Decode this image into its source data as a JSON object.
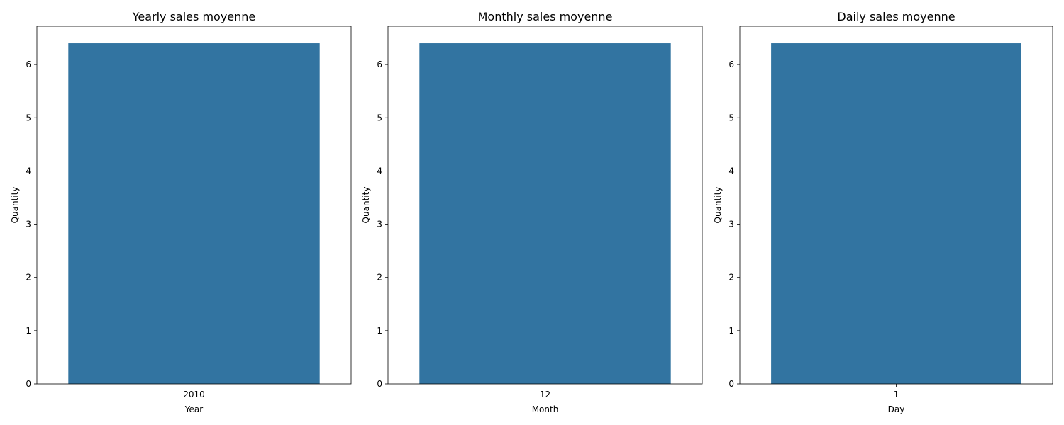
{
  "chart_data": [
    {
      "type": "bar",
      "title": "Yearly sales moyenne",
      "xlabel": "Year",
      "ylabel": "Quantity",
      "categories": [
        "2010"
      ],
      "values": [
        6.4
      ],
      "ylim": [
        0,
        6.72
      ],
      "yticks": [
        0,
        1,
        2,
        3,
        4,
        5,
        6
      ],
      "grid": false
    },
    {
      "type": "bar",
      "title": "Monthly sales moyenne",
      "xlabel": "Month",
      "ylabel": "Quantity",
      "categories": [
        "12"
      ],
      "values": [
        6.4
      ],
      "ylim": [
        0,
        6.72
      ],
      "yticks": [
        0,
        1,
        2,
        3,
        4,
        5,
        6
      ],
      "grid": false
    },
    {
      "type": "bar",
      "title": "Daily sales moyenne",
      "xlabel": "Day",
      "ylabel": "Quantity",
      "categories": [
        "1"
      ],
      "values": [
        6.4
      ],
      "ylim": [
        0,
        6.72
      ],
      "yticks": [
        0,
        1,
        2,
        3,
        4,
        5,
        6
      ],
      "grid": false
    }
  ],
  "colors": {
    "bar": "#3274a1",
    "axes": "#000000",
    "background": "#ffffff"
  }
}
